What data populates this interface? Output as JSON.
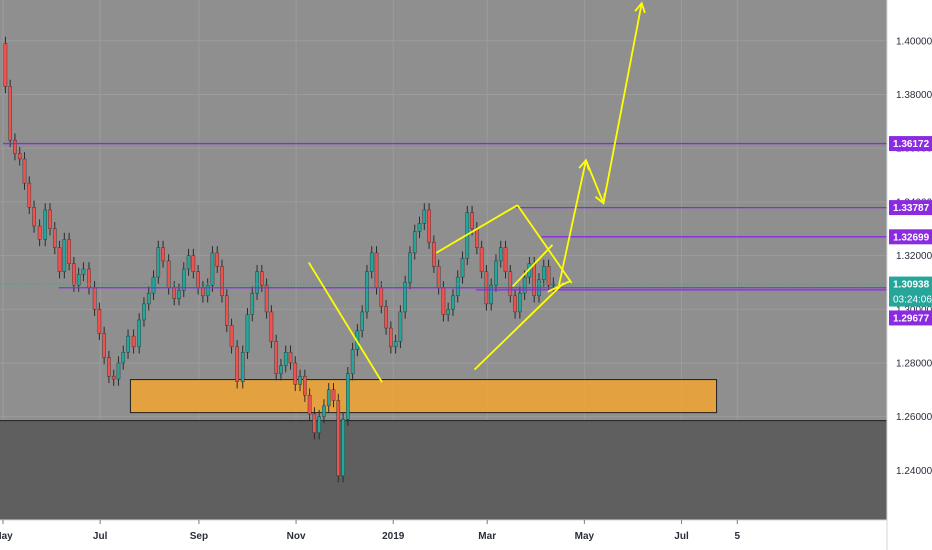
{
  "chart_data": {
    "type": "line",
    "title": "",
    "ylim": [
      1.2215,
      1.4152
    ],
    "y_ticks": [
      "1.40000",
      "1.38000",
      "1.36000",
      "1.34000",
      "1.32000",
      "1.30000",
      "1.28000",
      "1.26000",
      "1.24000"
    ],
    "y_tick_values": [
      1.4,
      1.38,
      1.36,
      1.34,
      1.32,
      1.3,
      1.28,
      1.26,
      1.24
    ],
    "x_ticks": [
      "May",
      "Jul",
      "Sep",
      "Nov",
      "2019",
      "Mar",
      "May",
      "Jul",
      "5"
    ],
    "x_tick_days": [
      0,
      61,
      123,
      184,
      245,
      304,
      365,
      426,
      461
    ],
    "x_range_days": [
      0,
      555
    ],
    "x_origin": "2018-05-01",
    "price_series": {
      "name": "",
      "color": "#26a69a",
      "down_color": "#ef5350",
      "days": [
        0,
        3,
        6,
        9,
        12,
        15,
        18,
        21,
        25,
        28,
        31,
        34,
        37,
        40,
        43,
        46,
        49,
        52,
        56,
        59,
        62,
        65,
        68,
        71,
        74,
        77,
        80,
        84,
        87,
        90,
        93,
        96,
        99,
        102,
        106,
        109,
        112,
        115,
        118,
        121,
        124,
        127,
        130,
        133,
        136,
        139,
        142,
        145,
        149,
        152,
        155,
        158,
        161,
        164,
        167,
        170,
        173,
        176,
        179,
        182,
        185,
        188,
        191,
        194,
        197,
        200,
        203,
        206,
        209,
        212,
        215,
        218,
        221,
        224,
        227,
        230,
        233,
        236,
        239,
        242,
        245,
        248,
        251,
        254,
        257,
        260,
        263,
        266,
        269,
        272,
        275,
        278,
        281,
        284,
        287,
        290,
        293,
        296,
        299,
        302,
        305,
        308,
        311,
        314,
        317,
        320,
        323,
        326,
        329,
        332,
        335,
        338,
        341,
        344,
        347
      ],
      "values": [
        1.399,
        1.383,
        1.363,
        1.358,
        1.356,
        1.347,
        1.338,
        1.331,
        1.326,
        1.337,
        1.33,
        1.323,
        1.314,
        1.326,
        1.317,
        1.309,
        1.313,
        1.315,
        1.308,
        1.3,
        1.291,
        1.282,
        1.275,
        1.274,
        1.28,
        1.284,
        1.29,
        1.286,
        1.296,
        1.302,
        1.306,
        1.312,
        1.323,
        1.318,
        1.308,
        1.304,
        1.307,
        1.315,
        1.32,
        1.314,
        1.308,
        1.305,
        1.309,
        1.321,
        1.316,
        1.305,
        1.294,
        1.286,
        1.273,
        1.284,
        1.298,
        1.306,
        1.314,
        1.309,
        1.299,
        1.288,
        1.276,
        1.279,
        1.284,
        1.28,
        1.272,
        1.275,
        1.268,
        1.261,
        1.254,
        1.26,
        1.264,
        1.27,
        1.266,
        1.238,
        1.259,
        1.276,
        1.285,
        1.292,
        1.299,
        1.314,
        1.321,
        1.308,
        1.301,
        1.293,
        1.286,
        1.288,
        1.299,
        1.31,
        1.321,
        1.329,
        1.332,
        1.337,
        1.325,
        1.316,
        1.308,
        1.298,
        1.3,
        1.305,
        1.312,
        1.319,
        1.336,
        1.33,
        1.323,
        1.314,
        1.302,
        1.309,
        1.318,
        1.323,
        1.314,
        1.305,
        1.299,
        1.306,
        1.312,
        1.317,
        1.305,
        1.311,
        1.316,
        1.309,
        1.3094
      ]
    },
    "horizontal_levels": [
      {
        "value": 1.36172,
        "label": "1.36172",
        "color": "#8a2be2",
        "start_day": 0
      },
      {
        "value": 1.33787,
        "label": "1.33787",
        "color": "#8a2be2",
        "start_day": 322
      },
      {
        "value": 1.32699,
        "label": "1.32699",
        "color": "#8a2be2",
        "start_day": 338
      },
      {
        "value": 1.30722,
        "label": "1.30722",
        "color": "#8a2be2",
        "start_day": 297
      },
      {
        "value": 1.29677,
        "label": "1.29677",
        "color": "#8a2be2",
        "start_day": 0,
        "tag_only": true
      },
      {
        "value": 1.308,
        "label": "",
        "color": "#8a2be2",
        "start_day": 35
      }
    ],
    "current_price": {
      "value": 1.30938,
      "label": "1.30938",
      "countdown": "03:24:06",
      "color": "#26a69a"
    },
    "support_zone": {
      "y_from": 1.2615,
      "y_to": 1.2738,
      "day_from": 80,
      "day_to": 448,
      "color": "#ffa726"
    },
    "lower_shade_from": 1.2585,
    "trend_lines": [
      {
        "points": [
          [
            192,
            1.3174
          ],
          [
            238,
            1.2728
          ]
        ]
      },
      {
        "points": [
          [
            272,
            1.321
          ],
          [
            323,
            1.3388
          ]
        ]
      },
      {
        "points": [
          [
            296,
            1.2775
          ],
          [
            352,
            1.3098
          ]
        ]
      },
      {
        "points": [
          [
            323,
            1.3388
          ],
          [
            357,
            1.3098
          ]
        ]
      },
      {
        "points": [
          [
            320,
            1.3085
          ],
          [
            345,
            1.324
          ]
        ]
      },
      {
        "points": [
          [
            342,
            1.3065
          ],
          [
            356,
            1.3105
          ]
        ]
      }
    ],
    "projection_arrow": {
      "points": [
        [
          349,
          1.3088
        ],
        [
          366,
          1.3555
        ],
        [
          377,
          1.3395
        ],
        [
          401,
          1.414
        ]
      ],
      "color": "#ffff00"
    }
  }
}
